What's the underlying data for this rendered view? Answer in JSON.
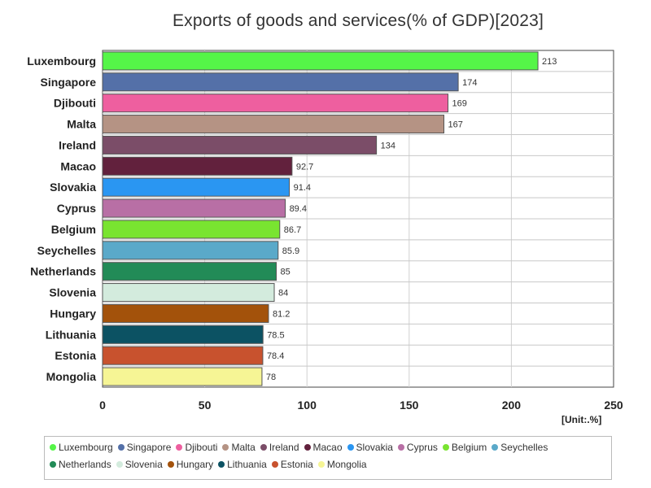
{
  "chart_data": {
    "type": "bar",
    "orientation": "horizontal",
    "title": "Exports of goods and services(% of GDP)[2023]",
    "unit": "[Unit:.%]",
    "xlim": [
      0,
      250
    ],
    "xticks": [
      0,
      50,
      100,
      150,
      200,
      250
    ],
    "grid": true,
    "legend_position": "bottom",
    "categories": [
      "Luxembourg",
      "Singapore",
      "Djibouti",
      "Malta",
      "Ireland",
      "Macao",
      "Slovakia",
      "Cyprus",
      "Belgium",
      "Seychelles",
      "Netherlands",
      "Slovenia",
      "Hungary",
      "Lithuania",
      "Estonia",
      "Mongolia"
    ],
    "values": [
      213,
      174,
      169,
      167,
      134,
      92.7,
      91.4,
      89.4,
      86.7,
      85.9,
      85,
      84,
      81.2,
      78.5,
      78.4,
      78
    ],
    "value_labels": [
      "213",
      "174",
      "169",
      "167",
      "134",
      "92.7",
      "91.4",
      "89.4",
      "86.7",
      "85.9",
      "85",
      "84",
      "81.2",
      "78.5",
      "78.4",
      "78"
    ],
    "colors": [
      "#55f548",
      "#5470a8",
      "#ee5f9f",
      "#b59384",
      "#7b4d68",
      "#62213d",
      "#2a96f2",
      "#b86fa5",
      "#79e430",
      "#5aa9c9",
      "#228b57",
      "#d3ebdd",
      "#a3520b",
      "#0c5263",
      "#c8522e",
      "#f6f595"
    ]
  }
}
